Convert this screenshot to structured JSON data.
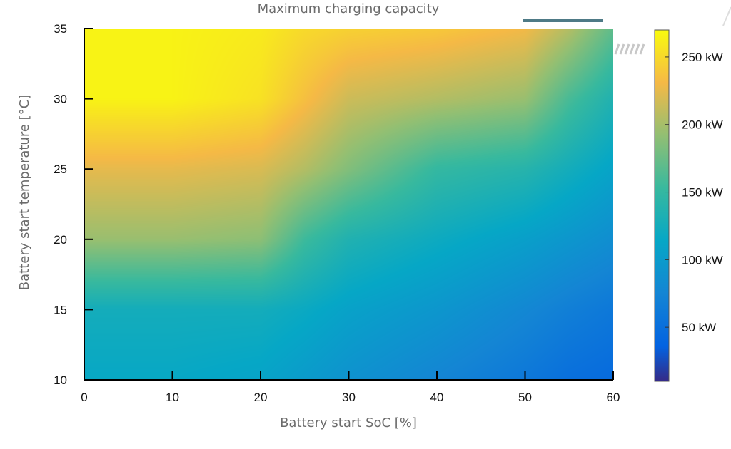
{
  "chart_data": {
    "type": "heatmap",
    "title": "Maximum charging capacity",
    "xlabel": "Battery start SoC [%]",
    "ylabel": "Battery start temperature [°C]",
    "xlim": [
      0,
      60
    ],
    "ylim": [
      10,
      35
    ],
    "x_ticks": [
      "0",
      "10",
      "20",
      "30",
      "40",
      "50",
      "60"
    ],
    "y_ticks": [
      "10",
      "15",
      "20",
      "25",
      "30",
      "35"
    ],
    "colormap": "parula",
    "colorbar": {
      "range_kw": [
        10,
        270
      ],
      "tick_labels": [
        "50 kW",
        "100 kW",
        "150 kW",
        "200 kW",
        "250 kW"
      ],
      "tick_values": [
        50,
        100,
        150,
        200,
        250
      ]
    },
    "x_values": [
      0,
      10,
      20,
      25,
      30,
      40,
      50,
      55,
      60
    ],
    "y_values": [
      10,
      15,
      20,
      25,
      30,
      35
    ],
    "values_kw": [
      [
        115,
        115,
        110,
        100,
        90,
        75,
        60,
        50,
        45
      ],
      [
        125,
        125,
        125,
        118,
        108,
        95,
        78,
        68,
        60
      ],
      [
        195,
        195,
        190,
        155,
        135,
        120,
        105,
        95,
        85
      ],
      [
        225,
        225,
        220,
        205,
        185,
        150,
        140,
        125,
        110
      ],
      [
        265,
        265,
        255,
        235,
        215,
        205,
        195,
        160,
        135
      ],
      [
        265,
        265,
        260,
        250,
        245,
        240,
        230,
        205,
        170
      ]
    ]
  }
}
